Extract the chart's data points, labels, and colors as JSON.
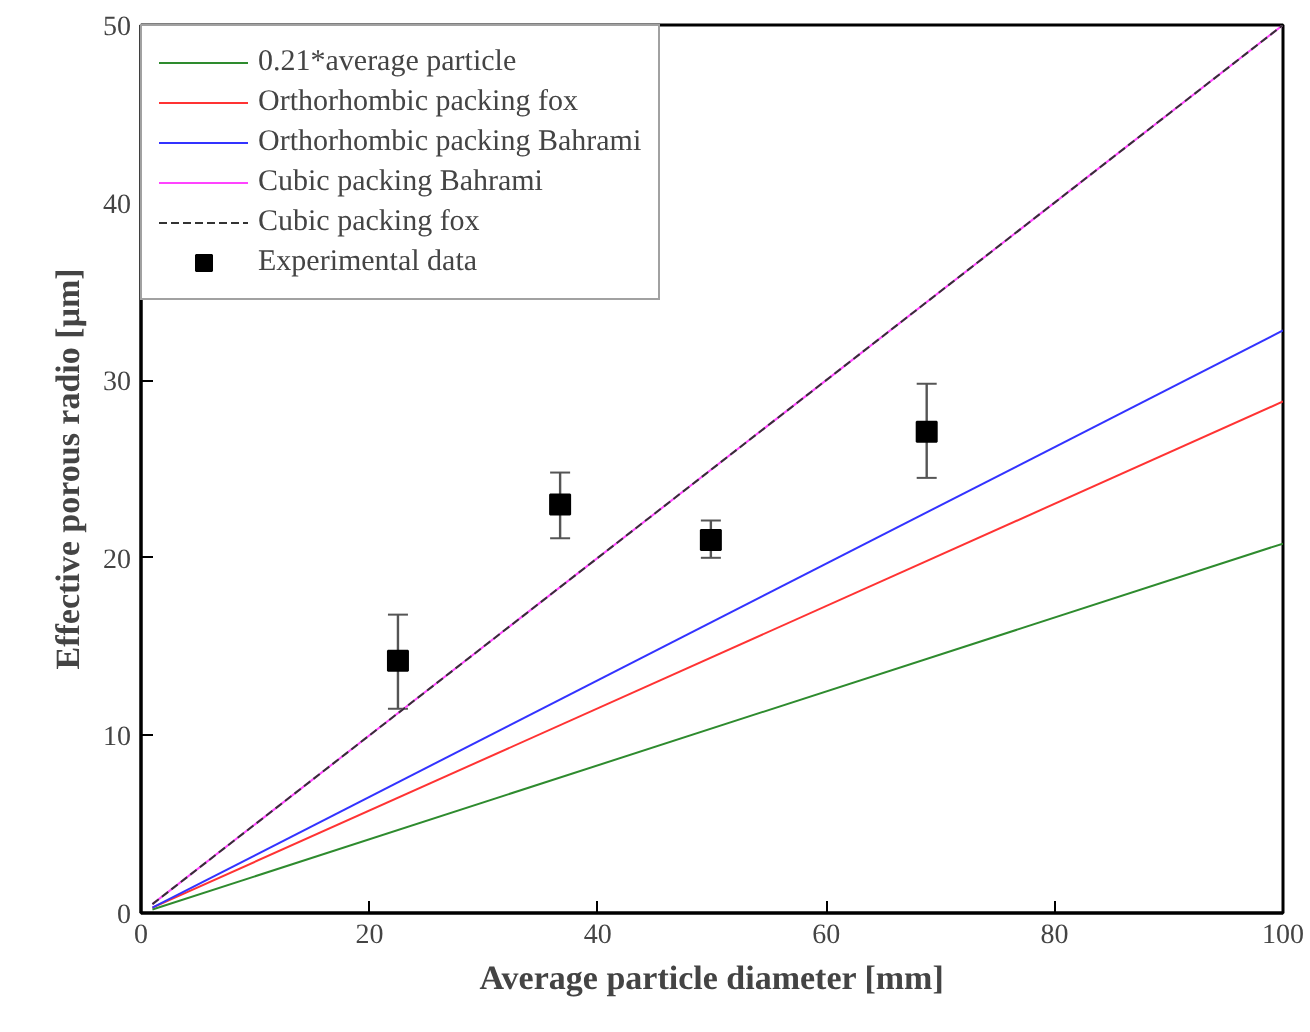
{
  "chart_data": {
    "type": "line",
    "xlabel": "Average particle diameter [mm]",
    "ylabel": "Effective porous radio [μm]",
    "xlim": [
      0,
      100
    ],
    "xticks": [
      0,
      20,
      40,
      60,
      80,
      100
    ],
    "ylim": [
      0,
      50
    ],
    "yticks": [
      0,
      10,
      20,
      30,
      40,
      50
    ],
    "grid": false,
    "legend": "top left",
    "series": [
      {
        "name": "0.21*average particle",
        "color": "#2e8b2e",
        "line_style": "solid",
        "x": [
          1,
          100
        ],
        "values": [
          0.2,
          20.8
        ]
      },
      {
        "name": "Orthorhombic packing fox",
        "color": "#ff3333",
        "line_style": "solid",
        "x": [
          1,
          100
        ],
        "values": [
          0.3,
          28.8
        ]
      },
      {
        "name": "Orthorhombic packing Bahrami",
        "color": "#3333ff",
        "line_style": "solid",
        "x": [
          1,
          100
        ],
        "values": [
          0.3,
          32.8
        ]
      },
      {
        "name": "Cubic packing Bahrami",
        "color": "#ff44ff",
        "line_style": "solid",
        "x": [
          1,
          100
        ],
        "values": [
          0.5,
          50
        ]
      },
      {
        "name": "Cubic packing fox",
        "color": "#333333",
        "line_style": "dashed",
        "x": [
          1,
          100
        ],
        "values": [
          0.5,
          50
        ]
      },
      {
        "name": "Experimental data",
        "type": "scatter",
        "marker": "square",
        "color": "#000000",
        "x": [
          22.5,
          36.7,
          49.9,
          68.8
        ],
        "values": [
          14.2,
          23.0,
          21.0,
          27.1
        ],
        "errors": [
          [
            11.5,
            16.8
          ],
          [
            21.1,
            24.8
          ],
          [
            20.0,
            22.1
          ],
          [
            24.5,
            29.8
          ]
        ]
      }
    ]
  }
}
